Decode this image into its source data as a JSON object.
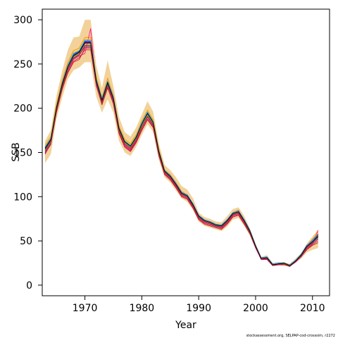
{
  "chart_data": {
    "type": "line",
    "title": "",
    "xlabel": "Year",
    "ylabel": "SSB",
    "xlim": [
      1962.5,
      2013
    ],
    "ylim": [
      -12,
      312
    ],
    "x_ticks": [
      1970,
      1980,
      1990,
      2000,
      2010
    ],
    "y_ticks": [
      0,
      50,
      100,
      150,
      200,
      250,
      300
    ],
    "x_tick_labels": [
      "1970",
      "1980",
      "1990",
      "2000",
      "2010"
    ],
    "y_tick_labels": [
      "0",
      "50",
      "100",
      "150",
      "200",
      "250",
      "300"
    ],
    "grid": false,
    "legend": "none",
    "band_color": "#f2d29a",
    "series_colors": [
      "#e6194b",
      "#000080",
      "#ff8c00",
      "#ff1493",
      "#2e8b57",
      "#8b008b",
      "#4169e1",
      "#b22222",
      "#ffd700",
      "#708090",
      "#9acd32",
      "#c71585",
      "#1e90ff",
      "#8b4513",
      "#000000"
    ],
    "x": [
      1963,
      1964,
      1965,
      1966,
      1967,
      1968,
      1969,
      1970,
      1971,
      1972,
      1973,
      1974,
      1975,
      1976,
      1977,
      1978,
      1979,
      1980,
      1981,
      1982,
      1983,
      1984,
      1985,
      1986,
      1987,
      1988,
      1989,
      1990,
      1991,
      1992,
      1993,
      1994,
      1995,
      1996,
      1997,
      1998,
      1999,
      2000,
      2001,
      2002,
      2003,
      2004,
      2005,
      2006,
      2007,
      2008,
      2009,
      2010,
      2011
    ],
    "central": [
      153,
      163,
      200,
      225,
      245,
      258,
      262,
      272,
      272,
      230,
      208,
      228,
      210,
      175,
      160,
      155,
      165,
      180,
      192,
      182,
      150,
      128,
      122,
      113,
      103,
      100,
      90,
      77,
      72,
      70,
      67,
      66,
      72,
      80,
      82,
      72,
      60,
      44,
      30,
      31,
      23,
      24,
      24,
      22,
      27,
      33,
      43,
      48,
      55
    ],
    "band_lower": [
      138,
      148,
      188,
      212,
      233,
      243,
      246,
      252,
      252,
      213,
      195,
      210,
      195,
      163,
      150,
      146,
      156,
      170,
      182,
      173,
      142,
      122,
      116,
      107,
      98,
      94,
      85,
      72,
      67,
      65,
      63,
      61,
      66,
      74,
      76,
      67,
      56,
      41,
      28,
      29,
      22,
      22,
      22,
      21,
      25,
      30,
      37,
      40,
      42
    ],
    "band_upper": [
      163,
      175,
      214,
      242,
      266,
      280,
      281,
      300,
      300,
      248,
      223,
      254,
      225,
      190,
      173,
      168,
      178,
      193,
      208,
      196,
      160,
      136,
      130,
      122,
      112,
      108,
      98,
      82,
      77,
      75,
      72,
      71,
      78,
      86,
      88,
      78,
      64,
      47,
      32,
      34,
      25,
      26,
      26,
      24,
      30,
      36,
      47,
      55,
      63
    ],
    "series": [
      {
        "values": [
          148,
          160,
          195,
          222,
          240,
          252,
          255,
          268,
          268,
          225,
          205,
          224,
          206,
          172,
          157,
          152,
          162,
          176,
          188,
          179,
          147,
          126,
          120,
          111,
          101,
          98,
          88,
          75,
          70,
          68,
          66,
          64,
          70,
          78,
          80,
          70,
          59,
          43,
          29,
          30,
          23,
          23,
          24,
          22,
          26,
          32,
          41,
          46,
          50
        ]
      },
      {
        "values": [
          155,
          165,
          202,
          228,
          247,
          260,
          264,
          275,
          275,
          233,
          210,
          230,
          212,
          177,
          162,
          157,
          167,
          182,
          194,
          184,
          152,
          130,
          123,
          114,
          104,
          101,
          91,
          78,
          73,
          71,
          68,
          67,
          73,
          81,
          83,
          73,
          61,
          44,
          30,
          31,
          23,
          24,
          25,
          22,
          27,
          34,
          44,
          49,
          57
        ]
      },
      {
        "values": [
          158,
          168,
          205,
          232,
          252,
          265,
          268,
          280,
          280,
          236,
          213,
          234,
          215,
          180,
          165,
          160,
          170,
          186,
          198,
          187,
          154,
          131,
          125,
          116,
          106,
          102,
          92,
          79,
          74,
          72,
          69,
          68,
          74,
          82,
          85,
          74,
          62,
          45,
          31,
          32,
          24,
          25,
          25,
          23,
          28,
          35,
          45,
          52,
          60
        ]
      },
      {
        "values": [
          150,
          161,
          197,
          223,
          243,
          255,
          259,
          262,
          290,
          228,
          206,
          226,
          208,
          174,
          159,
          154,
          164,
          178,
          190,
          181,
          149,
          127,
          121,
          112,
          102,
          99,
          89,
          76,
          71,
          69,
          66,
          65,
          71,
          79,
          81,
          71,
          59,
          43,
          30,
          30,
          23,
          24,
          24,
          22,
          27,
          33,
          42,
          48,
          62
        ]
      },
      {
        "values": [
          152,
          162,
          198,
          224,
          244,
          257,
          261,
          270,
          270,
          229,
          207,
          227,
          209,
          175,
          160,
          155,
          165,
          179,
          191,
          182,
          150,
          128,
          122,
          113,
          103,
          100,
          90,
          77,
          72,
          70,
          67,
          66,
          72,
          80,
          82,
          72,
          60,
          44,
          30,
          31,
          23,
          24,
          24,
          22,
          27,
          33,
          43,
          48,
          54
        ]
      },
      {
        "values": [
          154,
          164,
          201,
          226,
          246,
          259,
          263,
          273,
          273,
          231,
          209,
          229,
          211,
          176,
          161,
          156,
          166,
          181,
          193,
          183,
          151,
          129,
          123,
          114,
          104,
          101,
          91,
          78,
          72,
          70,
          67,
          66,
          72,
          80,
          82,
          72,
          60,
          44,
          30,
          31,
          23,
          24,
          24,
          22,
          27,
          33,
          43,
          48,
          56
        ]
      },
      {
        "values": [
          156,
          166,
          203,
          229,
          248,
          261,
          265,
          276,
          276,
          232,
          210,
          231,
          213,
          178,
          163,
          158,
          168,
          183,
          195,
          185,
          152,
          130,
          124,
          115,
          105,
          101,
          91,
          78,
          73,
          71,
          68,
          67,
          73,
          81,
          83,
          73,
          61,
          44,
          30,
          31,
          23,
          24,
          25,
          22,
          27,
          34,
          44,
          50,
          58
        ]
      },
      {
        "values": [
          149,
          159,
          196,
          221,
          241,
          253,
          257,
          266,
          266,
          226,
          204,
          223,
          205,
          171,
          156,
          151,
          161,
          175,
          187,
          178,
          146,
          125,
          119,
          110,
          100,
          97,
          87,
          74,
          69,
          67,
          65,
          63,
          69,
          77,
          79,
          69,
          58,
          42,
          29,
          29,
          22,
          23,
          23,
          21,
          26,
          32,
          40,
          45,
          48
        ]
      },
      {
        "values": [
          157,
          167,
          204,
          230,
          250,
          263,
          266,
          278,
          278,
          235,
          212,
          232,
          214,
          179,
          164,
          159,
          169,
          185,
          197,
          186,
          153,
          131,
          124,
          115,
          105,
          102,
          92,
          79,
          74,
          72,
          69,
          68,
          74,
          82,
          84,
          74,
          62,
          45,
          31,
          32,
          24,
          25,
          25,
          23,
          28,
          35,
          45,
          51,
          59
        ]
      },
      {
        "values": [
          151,
          161,
          199,
          225,
          245,
          256,
          260,
          271,
          271,
          229,
          208,
          228,
          209,
          175,
          160,
          155,
          165,
          180,
          192,
          181,
          150,
          128,
          122,
          113,
          103,
          100,
          90,
          77,
          72,
          70,
          67,
          66,
          72,
          80,
          82,
          72,
          60,
          44,
          30,
          31,
          23,
          24,
          24,
          22,
          27,
          33,
          43,
          47,
          53
        ]
      },
      {
        "values": [
          153,
          163,
          200,
          227,
          246,
          258,
          262,
          274,
          274,
          231,
          208,
          229,
          211,
          176,
          161,
          156,
          166,
          181,
          193,
          183,
          151,
          129,
          123,
          114,
          104,
          101,
          91,
          78,
          73,
          71,
          68,
          67,
          73,
          81,
          83,
          73,
          61,
          44,
          30,
          31,
          23,
          24,
          25,
          22,
          27,
          34,
          44,
          49,
          55
        ]
      },
      {
        "values": [
          150,
          160,
          198,
          224,
          244,
          256,
          260,
          269,
          269,
          228,
          206,
          226,
          208,
          174,
          158,
          153,
          163,
          178,
          190,
          180,
          149,
          127,
          121,
          112,
          102,
          99,
          89,
          76,
          71,
          69,
          66,
          65,
          71,
          79,
          81,
          71,
          59,
          43,
          29,
          30,
          23,
          23,
          24,
          22,
          26,
          32,
          42,
          47,
          52
        ]
      },
      {
        "values": [
          156,
          166,
          202,
          229,
          249,
          262,
          265,
          277,
          277,
          233,
          211,
          231,
          213,
          178,
          163,
          158,
          168,
          184,
          196,
          185,
          152,
          130,
          124,
          115,
          105,
          102,
          92,
          79,
          74,
          72,
          69,
          68,
          74,
          82,
          84,
          74,
          62,
          45,
          31,
          32,
          24,
          25,
          25,
          23,
          28,
          35,
          45,
          51,
          58
        ]
      },
      {
        "values": [
          152,
          162,
          199,
          225,
          245,
          257,
          261,
          271,
          271,
          230,
          207,
          227,
          210,
          175,
          160,
          155,
          165,
          179,
          191,
          182,
          150,
          128,
          122,
          113,
          103,
          100,
          90,
          77,
          72,
          70,
          67,
          66,
          72,
          80,
          82,
          72,
          60,
          44,
          30,
          31,
          23,
          24,
          24,
          22,
          27,
          33,
          43,
          48,
          57
        ]
      },
      {
        "values": [
          154,
          164,
          201,
          227,
          247,
          259,
          263,
          274,
          274,
          231,
          209,
          229,
          211,
          177,
          162,
          157,
          167,
          182,
          194,
          184,
          151,
          129,
          123,
          114,
          104,
          101,
          91,
          78,
          73,
          71,
          68,
          67,
          73,
          81,
          83,
          73,
          61,
          44,
          30,
          31,
          23,
          24,
          25,
          22,
          27,
          34,
          44,
          49,
          55
        ]
      }
    ]
  },
  "credit": "stockassessment.org, SELPAP-cod-crosssim, r2272"
}
